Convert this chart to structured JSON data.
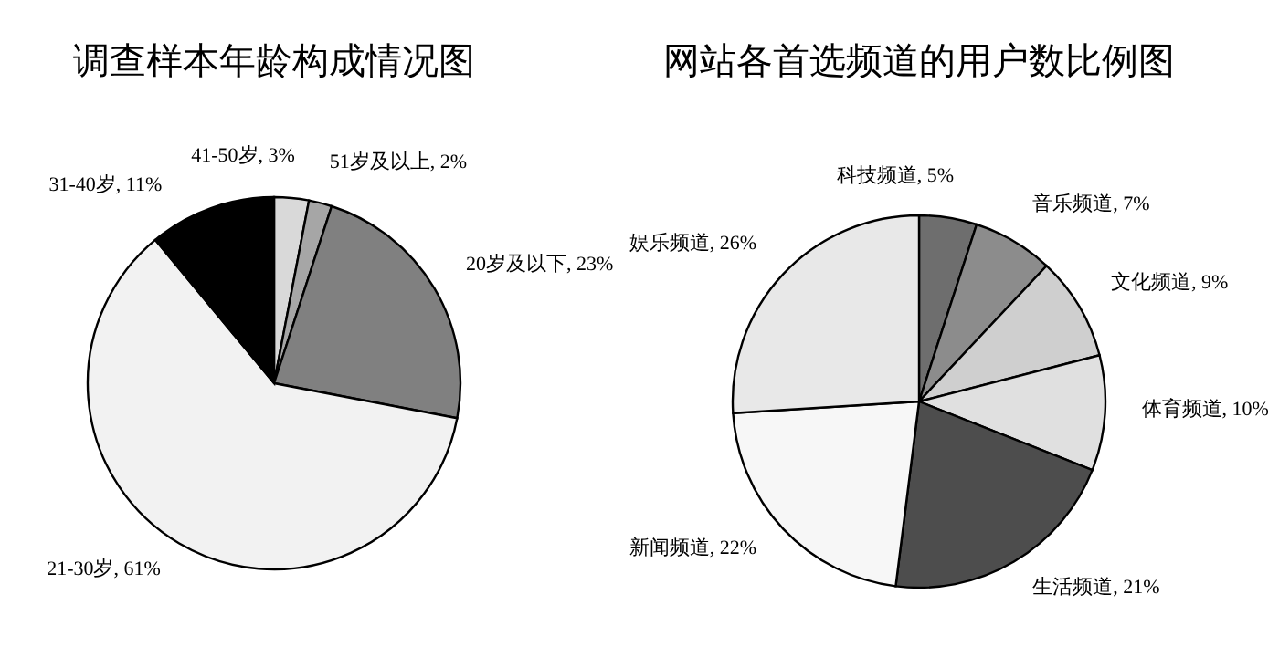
{
  "chart_data": [
    {
      "type": "pie",
      "title": "调查样本年龄构成情况图",
      "categories": [
        "41-50岁",
        "51岁及以上",
        "20岁及以下",
        "21-30岁",
        "31-40岁"
      ],
      "values": [
        3,
        2,
        23,
        61,
        11
      ],
      "value_labels": [
        "3%",
        "2%",
        "23%",
        "61%",
        "11%"
      ],
      "colors": [
        "#d9d9d9",
        "#a6a6a6",
        "#808080",
        "#f2f2f2",
        "#000000"
      ]
    },
    {
      "type": "pie",
      "title": "网站各首选频道的用户数比例图",
      "categories": [
        "科技频道",
        "音乐频道",
        "文化频道",
        "体育频道",
        "生活频道",
        "新闻频道",
        "娱乐频道"
      ],
      "values": [
        5,
        7,
        9,
        10,
        21,
        22,
        26
      ],
      "value_labels": [
        "5%",
        "7%",
        "9%",
        "10%",
        "21%",
        "22%",
        "26%"
      ],
      "colors": [
        "#6e6e6e",
        "#8c8c8c",
        "#cfcfcf",
        "#e0e0e0",
        "#4d4d4d",
        "#f7f7f7",
        "#e8e8e8"
      ]
    }
  ]
}
